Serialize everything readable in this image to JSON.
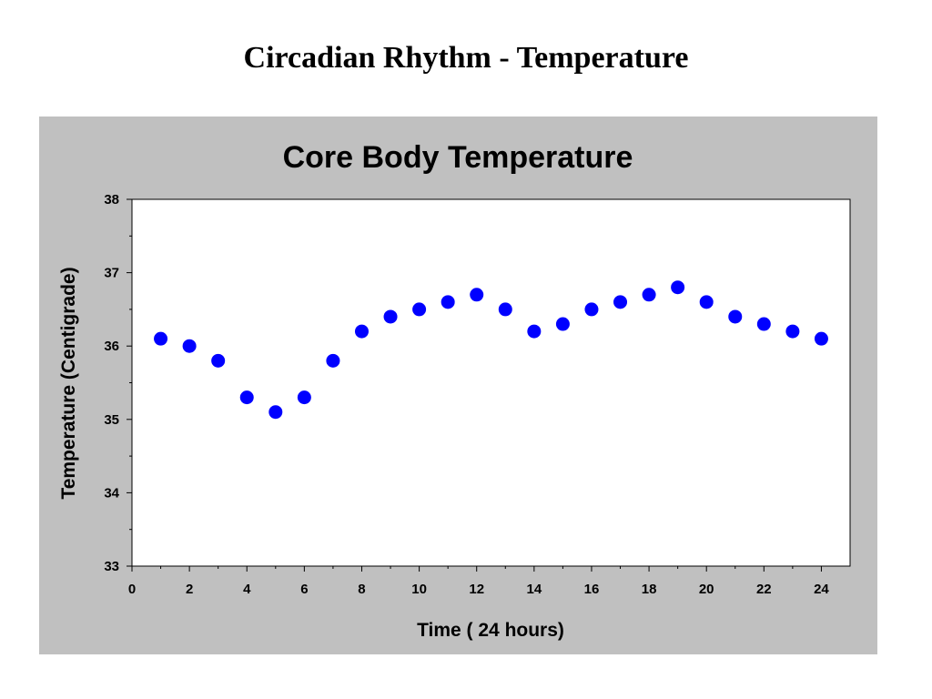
{
  "slide": {
    "title": "Circadian Rhythm - Temperature"
  },
  "chart_data": {
    "type": "scatter",
    "title": "Core Body Temperature",
    "xlabel": "Time ( 24 hours)",
    "ylabel": "Temperature (Centigrade)",
    "xlim": [
      0,
      25
    ],
    "ylim": [
      33,
      38
    ],
    "x_ticks": [
      0,
      2,
      4,
      6,
      8,
      10,
      12,
      14,
      16,
      18,
      20,
      22,
      24
    ],
    "y_ticks": [
      33,
      34,
      35,
      36,
      37,
      38
    ],
    "grid": false,
    "colors": {
      "marker": "#0000ff",
      "panel": "#c0c0c0",
      "plot_area": "#ffffff"
    },
    "series": [
      {
        "x": [
          1,
          2,
          3,
          4,
          5,
          6,
          7,
          8,
          9,
          10,
          11,
          12,
          13,
          14,
          15,
          16,
          17,
          18,
          19,
          20,
          21,
          22,
          23,
          24
        ],
        "y": [
          36.1,
          36.0,
          35.8,
          35.3,
          35.1,
          35.3,
          35.8,
          36.2,
          36.4,
          36.5,
          36.6,
          36.7,
          36.5,
          36.2,
          36.3,
          36.5,
          36.6,
          36.7,
          36.8,
          36.6,
          36.4,
          36.3,
          36.2,
          36.1
        ]
      }
    ]
  }
}
